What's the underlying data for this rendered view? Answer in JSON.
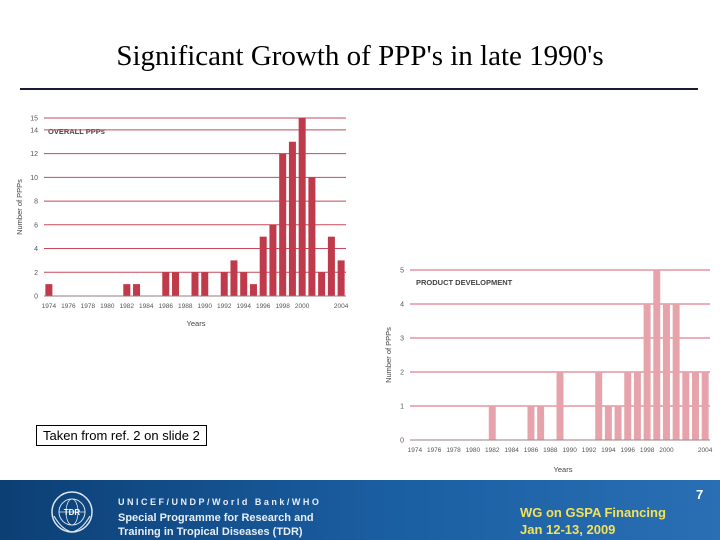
{
  "slide": {
    "title": "Significant Growth of PPP's in late 1990's",
    "source_note": "Taken from ref. 2 on slide 2",
    "page_number": "7"
  },
  "footer": {
    "org_line1": "UNICEF/UNDP/World Bank/WHO",
    "org_line2": "Special Programme for Research and",
    "org_line3": "Training in Tropical Diseases (TDR)",
    "logo_text": "TDR",
    "wg_line1": "WG on GSPA Financing",
    "wg_line2": "Jan 12-13, 2009"
  },
  "chart_data": [
    {
      "type": "bar",
      "title": "OVERALL PPPs",
      "xlabel": "Years",
      "ylabel": "Number of PPPs",
      "ylim": [
        0,
        15
      ],
      "yticks": [
        0,
        2,
        4,
        6,
        8,
        10,
        12,
        14,
        15
      ],
      "bar_color": "#bf3a4a",
      "grid_color": "#c8485a",
      "xticks": [
        "1974",
        "1976",
        "1978",
        "1980",
        "1982",
        "1984",
        "1986",
        "1988",
        "1990",
        "1992",
        "1994",
        "1996",
        "1998",
        "2000",
        "2004"
      ],
      "x": [
        1974,
        1975,
        1976,
        1977,
        1978,
        1979,
        1980,
        1981,
        1982,
        1983,
        1984,
        1985,
        1986,
        1987,
        1988,
        1989,
        1990,
        1991,
        1992,
        1993,
        1994,
        1995,
        1996,
        1997,
        1998,
        1999,
        2000,
        2001,
        2002,
        2003,
        2004
      ],
      "values": [
        1,
        0,
        0,
        0,
        0,
        0,
        0,
        0,
        1,
        1,
        0,
        0,
        2,
        2,
        0,
        2,
        2,
        0,
        2,
        3,
        2,
        1,
        5,
        6,
        12,
        13,
        15,
        10,
        2,
        5,
        3
      ]
    },
    {
      "type": "bar",
      "title": "PRODUCT DEVELOPMENT",
      "xlabel": "Years",
      "ylabel": "Number of PPPs",
      "ylim": [
        0,
        5
      ],
      "yticks": [
        0,
        1,
        2,
        3,
        4,
        5
      ],
      "bar_color": "#e6a3ab",
      "grid_color": "#d95f70",
      "xticks": [
        "1974",
        "1976",
        "1978",
        "1980",
        "1982",
        "1984",
        "1986",
        "1988",
        "1990",
        "1992",
        "1994",
        "1996",
        "1998",
        "2000",
        "2004"
      ],
      "x": [
        1974,
        1975,
        1976,
        1977,
        1978,
        1979,
        1980,
        1981,
        1982,
        1983,
        1984,
        1985,
        1986,
        1987,
        1988,
        1989,
        1990,
        1991,
        1992,
        1993,
        1994,
        1995,
        1996,
        1997,
        1998,
        1999,
        2000,
        2001,
        2002,
        2003,
        2004
      ],
      "values": [
        0,
        0,
        0,
        0,
        0,
        0,
        0,
        0,
        1,
        0,
        0,
        0,
        1,
        1,
        0,
        2,
        0,
        0,
        0,
        2,
        1,
        1,
        2,
        2,
        4,
        5,
        4,
        4,
        2,
        2,
        2
      ]
    }
  ]
}
